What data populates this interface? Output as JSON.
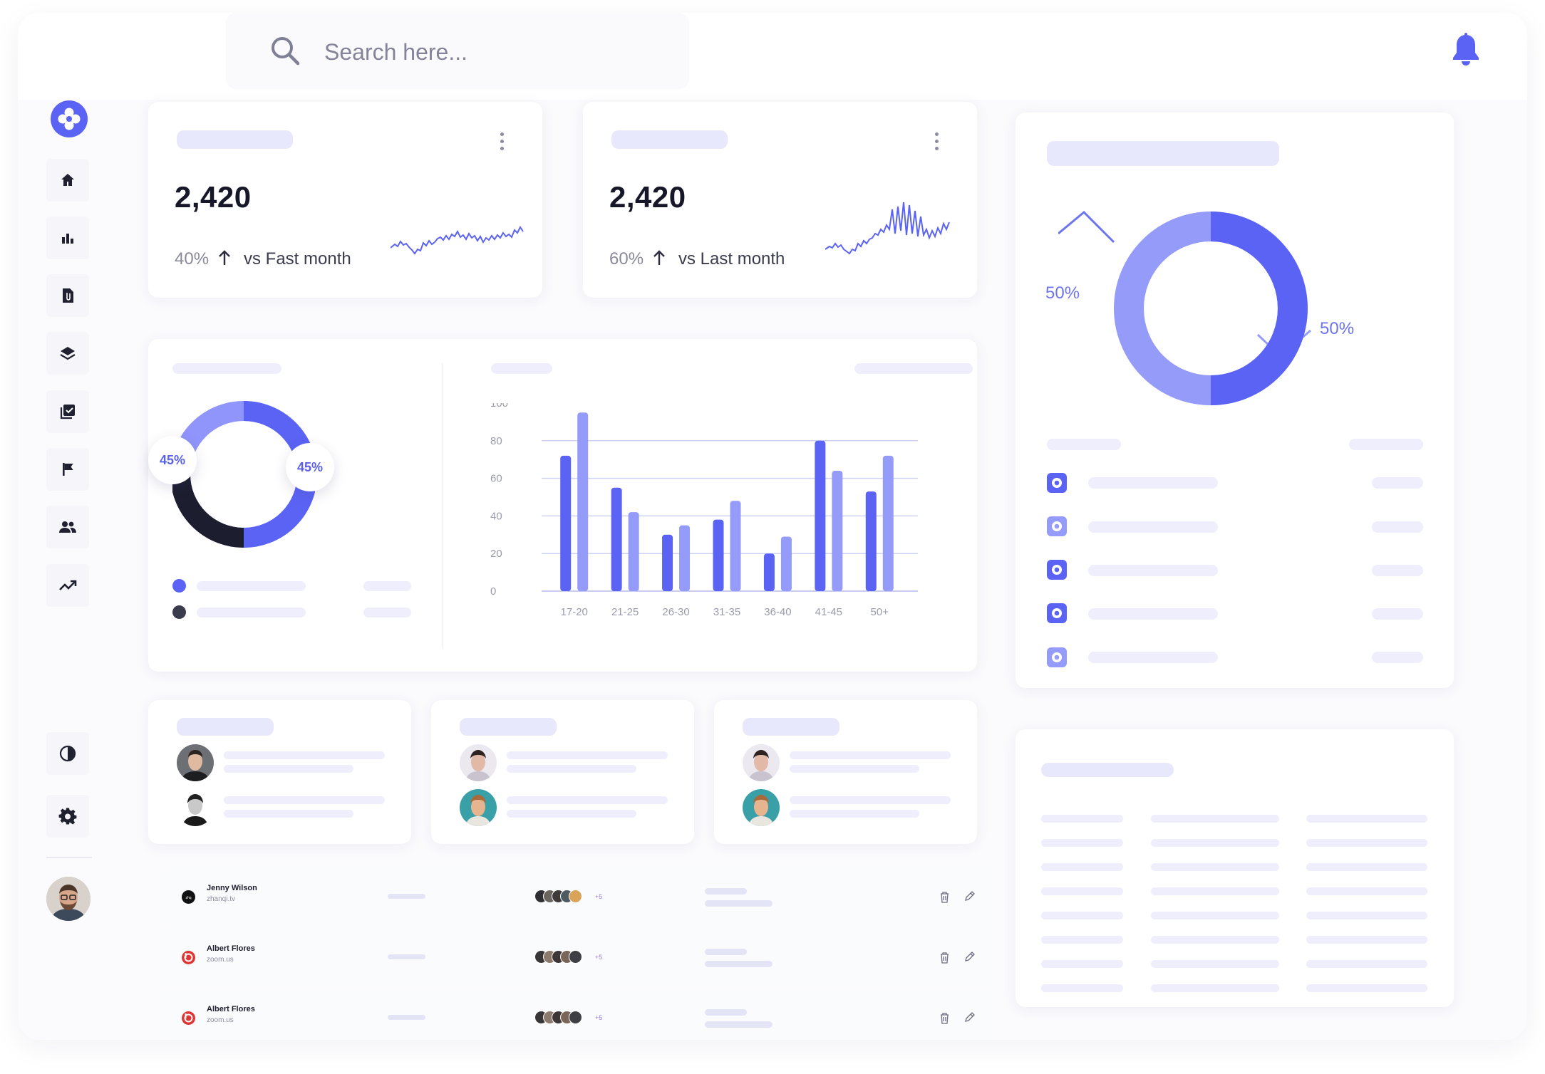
{
  "search": {
    "placeholder": "Search here..."
  },
  "icons": {
    "search": "search-icon",
    "notifications": "bell-icon",
    "logo": "logo-icon",
    "sidebar": [
      "home-icon",
      "bar-chart-icon",
      "document-icon",
      "layers-icon",
      "checklist-icon",
      "flag-icon",
      "users-icon",
      "trending-up-icon"
    ],
    "sidebar_bottom": [
      "theme-icon",
      "settings-icon"
    ]
  },
  "colors": {
    "accent": "#5b63f5",
    "accent_light": "#959bf9",
    "dark": "#1c1d2e",
    "skeleton": "#e7e8fb"
  },
  "stat_cards": [
    {
      "value": "2,420",
      "percent": "40%",
      "comparison": "vs Fast month",
      "trend": "up"
    },
    {
      "value": "2,420",
      "percent": "60%",
      "comparison": "vs Last month",
      "trend": "up"
    }
  ],
  "small_donut": {
    "left_label": "45%",
    "right_label": "45%"
  },
  "chart_data": {
    "type": "bar",
    "categories": [
      "17-20",
      "21-25",
      "26-30",
      "31-35",
      "36-40",
      "41-45",
      "50+"
    ],
    "series": [
      {
        "values": [
          72,
          55,
          30,
          38,
          20,
          80,
          53
        ],
        "color": "#5b63f5"
      },
      {
        "values": [
          95,
          42,
          35,
          48,
          29,
          64,
          72
        ],
        "color": "#959bf9"
      }
    ],
    "yticks": [
      "100",
      "80",
      "60",
      "40",
      "20",
      "0"
    ],
    "ylim": [
      0,
      100
    ],
    "grid": true
  },
  "big_donut": {
    "left_label": "50%",
    "right_label": "50%"
  },
  "table_rows": [
    {
      "name": "Jenny Wilson",
      "domain": "zhanqi.tv",
      "more": "+5",
      "logo_color": "#111111"
    },
    {
      "name": "Albert Flores",
      "domain": "zoom.us",
      "more": "+5",
      "logo_color": "#e03535"
    },
    {
      "name": "Albert Flores",
      "domain": "zoom.us",
      "more": "+5",
      "logo_color": "#e03535"
    }
  ]
}
